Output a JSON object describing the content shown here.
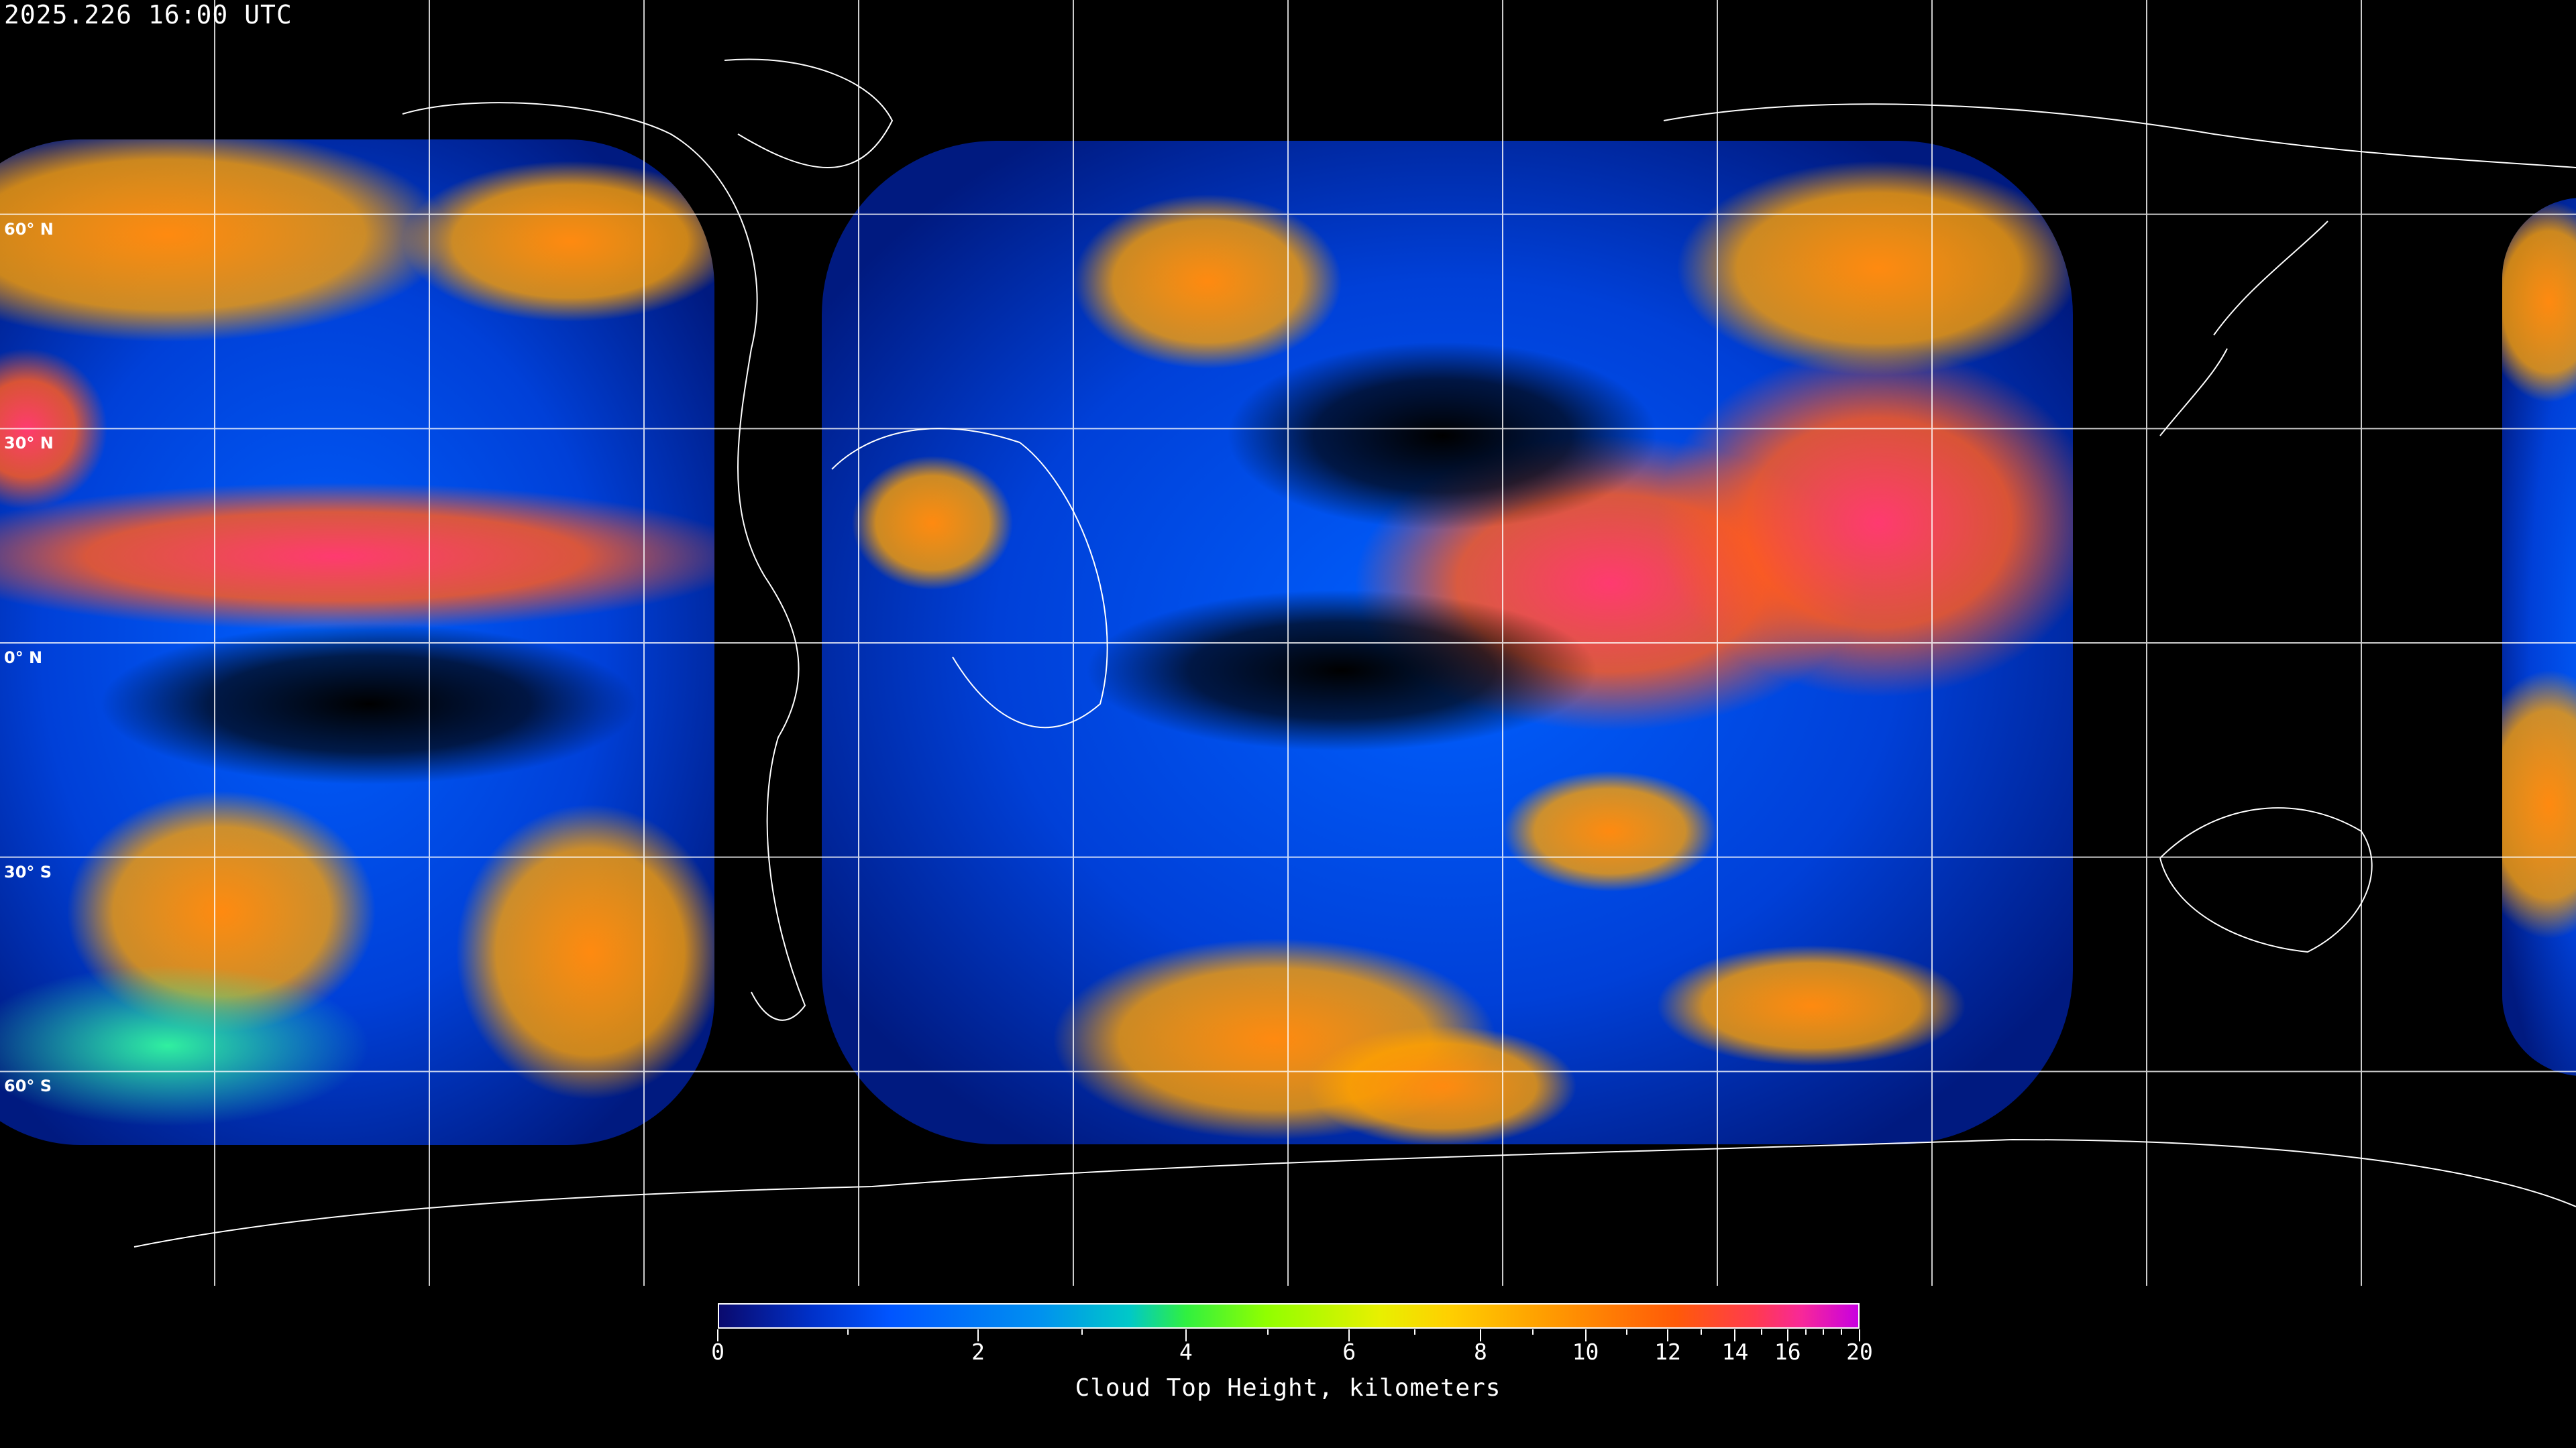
{
  "header": {
    "timestamp": "2025.226 16:00 UTC"
  },
  "map": {
    "projection": "equirectangular",
    "graticule_spacing_deg": 30,
    "lat_labels": [
      "60° N",
      "30° N",
      "0° N",
      "30° S",
      "60° S"
    ],
    "background_color": "#000000",
    "coastline_color": "#ffffff",
    "grid_color": "#ffffff"
  },
  "colorbar": {
    "title": "Cloud Top Height, kilometers",
    "min": 0,
    "max": 20,
    "tick_labels": [
      "0",
      "2",
      "4",
      "6",
      "8",
      "10",
      "12",
      "14",
      "16",
      "20"
    ],
    "minor_ticks": [
      1,
      3,
      5,
      7,
      9,
      11,
      13,
      15,
      17,
      18,
      19
    ],
    "colors": [
      "#0a0a6e",
      "#0055ff",
      "#00c8c8",
      "#90ff00",
      "#e8f000",
      "#ffa000",
      "#ff5a08",
      "#f82898",
      "#c800e0"
    ]
  }
}
